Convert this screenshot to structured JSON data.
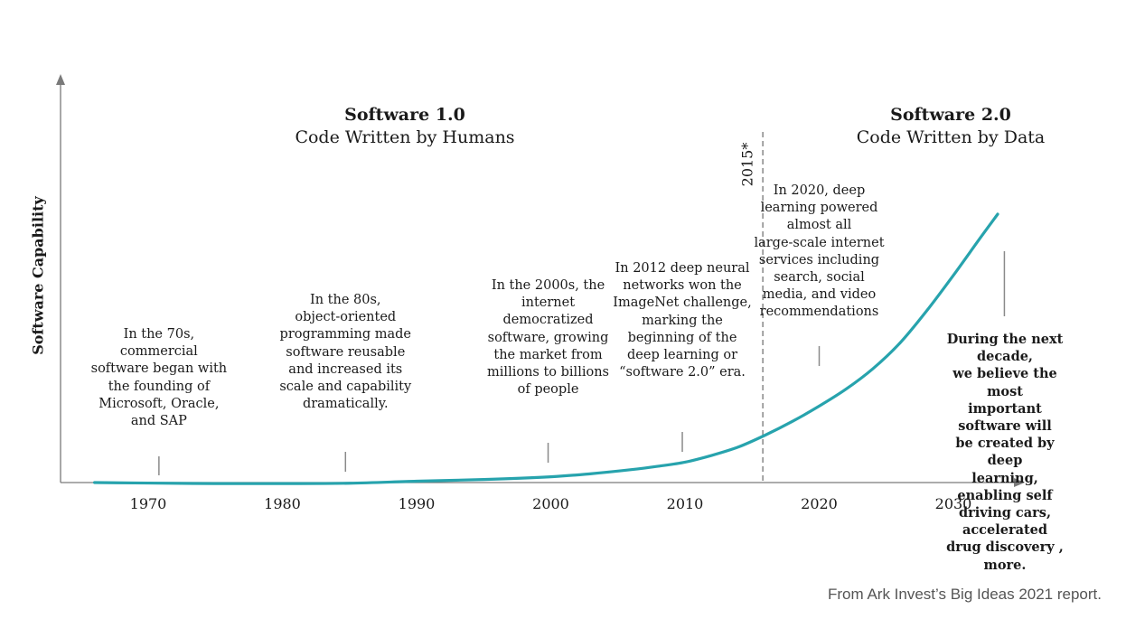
{
  "chart_data": {
    "type": "line",
    "title": "Software 1.0 vs Software 2.0",
    "ylabel": "Software Capability",
    "xlabel": "",
    "xlim": [
      1964,
      2036
    ],
    "ylim": [
      0,
      100
    ],
    "x_ticks": [
      1970,
      1980,
      1990,
      2000,
      2010,
      2020,
      2030
    ],
    "series": [
      {
        "name": "Software Capability",
        "color": "#27a3ad",
        "x": [
          1966,
          1970,
          1975,
          1980,
          1985,
          1990,
          1995,
          2000,
          2003,
          2006,
          2008,
          2010,
          2012,
          2014,
          2016,
          2018,
          2020,
          2022,
          2024,
          2026,
          2028,
          2030,
          2032,
          2033.3
        ],
        "y": [
          0,
          -0.15,
          -0.3,
          -0.3,
          -0.2,
          0.4,
          0.9,
          1.7,
          2.6,
          3.8,
          4.8,
          6,
          8,
          10.5,
          14,
          18,
          22.5,
          27.5,
          33.5,
          41,
          50.5,
          61,
          72,
          79
        ]
      }
    ],
    "era_split": {
      "year": 2015.8,
      "label": "2015*"
    },
    "eras": [
      {
        "title": "Software 1.0",
        "subtitle": "Code Written by Humans"
      },
      {
        "title": "Software 2.0",
        "subtitle": "Code Written by Data"
      }
    ],
    "annotations": [
      {
        "year": 1970.8,
        "text": "In the 70s,\ncommercial\nsoftware began with\nthe founding of\nMicrosoft, Oracle,\nand SAP",
        "bold": false
      },
      {
        "year": 1984.7,
        "text": "In the 80s,\nobject-oriented\nprogramming made\nsoftware reusable\nand increased its\nscale and capability\ndramatically.",
        "bold": false
      },
      {
        "year": 1999.8,
        "text": "In the 2000s, the\ninternet\ndemocratized\nsoftware, growing\nthe market from\nmillions to billions\nof people",
        "bold": false
      },
      {
        "year": 2009.8,
        "text": "In 2012 deep neural\nnetworks won the\nImageNet challenge,\nmarking the\nbeginning of the\ndeep learning or\n“software 2.0” era.",
        "bold": false
      },
      {
        "year": 2020,
        "text": "In 2020, deep\nlearning powered\nalmost all\nlarge-scale internet\nservices including\nsearch, social\nmedia, and video\nrecommendations",
        "bold": false
      },
      {
        "year": 2033.8,
        "text": "During the next decade,\nwe believe the most\nimportant software will\nbe created by deep\nlearning, enabling self\ndriving cars, accelerated\ndrug discovery , more.",
        "bold": true
      }
    ]
  },
  "source_note": "From Ark Invest’s Big Ideas 2021 report."
}
